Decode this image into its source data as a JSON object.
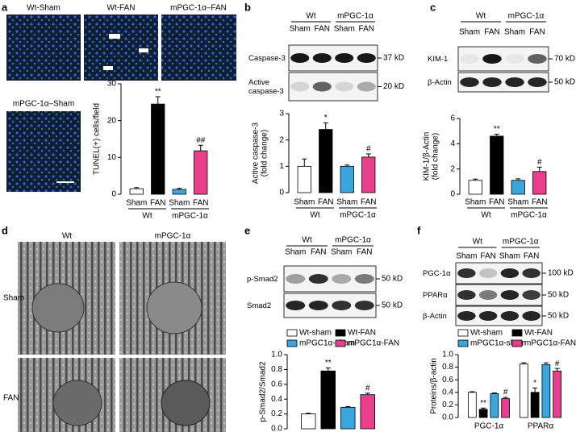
{
  "panel_labels": [
    "a",
    "b",
    "c",
    "d",
    "e",
    "f"
  ],
  "panel_a": {
    "micrographs": [
      "Wt-Sham",
      "Wt-FAN",
      "mPGC-1α–FAN",
      "mPGC-1α–Sham"
    ]
  },
  "panel_b": {
    "blot": {
      "groups": [
        "Wt",
        "mPGC-1α"
      ],
      "lanes": [
        "Sham",
        "FAN",
        "Sham",
        "FAN"
      ],
      "rows": [
        "Caspase-3",
        "Active caspase-3"
      ],
      "markers": [
        "37 kD",
        "20 kD"
      ]
    }
  },
  "panel_c": {
    "blot": {
      "groups": [
        "Wt",
        "mPGC-1α"
      ],
      "lanes": [
        "Sham",
        "FAN",
        "Sham",
        "FAN"
      ],
      "rows": [
        "KIM-1",
        "β-Actin"
      ],
      "markers": [
        "70 kD",
        "50 kD"
      ]
    }
  },
  "panel_d": {
    "columns": [
      "Wt",
      "mPGC-1α"
    ],
    "rows": [
      "Sham",
      "FAN"
    ]
  },
  "panel_e": {
    "blot": {
      "groups": [
        "Wt",
        "mPGC-1α"
      ],
      "lanes": [
        "Sham",
        "FAN",
        "Sham",
        "FAN"
      ],
      "rows": [
        "p-Smad2",
        "Smad2"
      ],
      "markers": [
        "50 kD",
        "50 kD"
      ]
    }
  },
  "panel_f": {
    "blot": {
      "groups": [
        "Wt",
        "mPGC-1α"
      ],
      "lanes": [
        "Sham",
        "FAN",
        "Sham",
        "FAN"
      ],
      "rows": [
        "PGC-1α",
        "PPARα",
        "β-Actin"
      ],
      "markers": [
        "100 kD",
        "50 kD",
        "50 kD"
      ]
    }
  },
  "chart_data": [
    {
      "type": "bar",
      "ylabel": [
        "TUNEL(+) cells/field"
      ],
      "categories": [
        "Sham",
        "FAN",
        "Sham",
        "FAN"
      ],
      "group_labels": [
        "Wt",
        "mPGC-1α"
      ],
      "values": [
        1.5,
        24.5,
        1.3,
        11.8
      ],
      "errors": [
        0.3,
        2.0,
        0.3,
        1.5
      ],
      "colors": [
        "#ffffff",
        "#000000",
        "#3aa6dd",
        "#e83e8c"
      ],
      "significance": [
        null,
        "**",
        null,
        "##"
      ],
      "ylim": [
        0,
        30
      ],
      "yticks": [
        0,
        10,
        20,
        30
      ]
    },
    {
      "type": "bar",
      "ylabel": [
        "Active caspase-3",
        "(fold change)"
      ],
      "categories": [
        "Sham",
        "FAN",
        "Sham",
        "FAN"
      ],
      "group_labels": [
        "Wt",
        "mPGC-1α"
      ],
      "values": [
        1.0,
        2.4,
        1.0,
        1.35
      ],
      "errors": [
        0.28,
        0.25,
        0.05,
        0.12
      ],
      "colors": [
        "#ffffff",
        "#000000",
        "#3aa6dd",
        "#e83e8c"
      ],
      "significance": [
        null,
        "*",
        null,
        "#"
      ],
      "ylim": [
        0,
        3
      ],
      "yticks": [
        0,
        1,
        2,
        3
      ]
    },
    {
      "type": "bar",
      "ylabel": [
        "KIM-1/β-Actin",
        "(fold change)"
      ],
      "categories": [
        "Sham",
        "FAN",
        "Sham",
        "FAN"
      ],
      "group_labels": [
        "Wt",
        "mPGC-1α"
      ],
      "values": [
        1.1,
        4.6,
        1.1,
        1.8
      ],
      "errors": [
        0.1,
        0.15,
        0.12,
        0.35
      ],
      "colors": [
        "#ffffff",
        "#000000",
        "#3aa6dd",
        "#e83e8c"
      ],
      "significance": [
        null,
        "**",
        null,
        "#"
      ],
      "ylim": [
        0,
        6
      ],
      "yticks": [
        0,
        2,
        4,
        6
      ]
    },
    {
      "type": "bar",
      "ylabel": [
        "p-Smad2/Smad2"
      ],
      "categories": [
        null
      ],
      "series": [
        {
          "name": "Wt-sham",
          "color": "#ffffff",
          "values": [
            0.2
          ],
          "errors": [
            0.01
          ],
          "significance": [
            null
          ]
        },
        {
          "name": "Wt-FAN",
          "color": "#000000",
          "values": [
            0.78
          ],
          "errors": [
            0.04
          ],
          "significance": [
            "**"
          ]
        },
        {
          "name": "mPGC1α-sham",
          "color": "#3aa6dd",
          "values": [
            0.29
          ],
          "errors": [
            0.01
          ],
          "significance": [
            null
          ]
        },
        {
          "name": "mPGC1α-FAN",
          "color": "#e83e8c",
          "values": [
            0.46
          ],
          "errors": [
            0.02
          ],
          "significance": [
            "#"
          ]
        }
      ],
      "ylim": [
        0,
        1
      ],
      "yticks": [
        {
          "value": 0,
          "label": "0.0"
        },
        0.2,
        0.4,
        0.6,
        0.8,
        {
          "value": 1,
          "label": "1.0"
        }
      ],
      "legend": "top"
    },
    {
      "type": "bar",
      "ylabel": [
        "Proteins/β-actin"
      ],
      "categories": [
        "PGC-1α",
        "PPARα"
      ],
      "series": [
        {
          "name": "Wt-sham",
          "color": "#ffffff",
          "values": [
            0.4,
            0.85
          ],
          "errors": [
            0.01,
            0.02
          ],
          "significance": [
            null,
            null
          ]
        },
        {
          "name": "Wt-FAN",
          "color": "#000000",
          "values": [
            0.13,
            0.4
          ],
          "errors": [
            0.02,
            0.07
          ],
          "significance": [
            "**",
            "*"
          ]
        },
        {
          "name": "mPGC1α-sham",
          "color": "#3aa6dd",
          "values": [
            0.38,
            0.84
          ],
          "errors": [
            0.01,
            0.03
          ],
          "significance": [
            null,
            null
          ]
        },
        {
          "name": "mPGC1α-FAN",
          "color": "#e83e8c",
          "values": [
            0.3,
            0.74
          ],
          "errors": [
            0.02,
            0.04
          ],
          "significance": [
            "#",
            "#"
          ]
        }
      ],
      "ylim": [
        0,
        1
      ],
      "yticks": [
        {
          "value": 0,
          "label": "0.0"
        },
        0.2,
        0.4,
        0.6,
        0.8,
        {
          "value": 1,
          "label": "1.0"
        }
      ],
      "legend": "top"
    }
  ]
}
